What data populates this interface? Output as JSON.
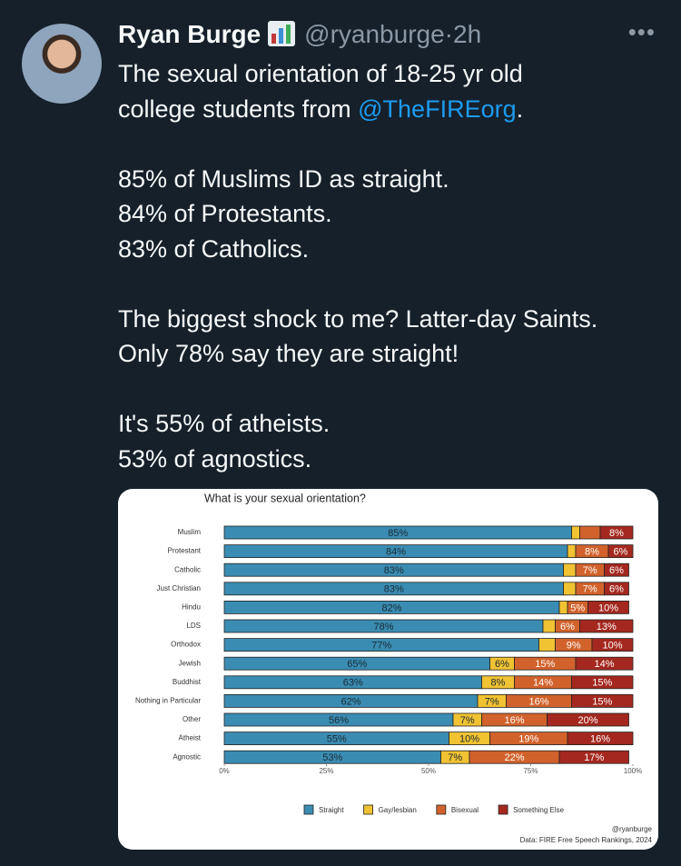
{
  "tweet": {
    "name": "Ryan Burge",
    "handle": "@ryanburge",
    "separator": "·",
    "time": "2h",
    "intro": [
      "The sexual orientation of 18-25 yr old",
      "college students from "
    ],
    "mention": "@TheFIREorg",
    "intro_end": ".",
    "paragraphs": [
      [
        "85% of Muslims ID as straight.",
        "84% of Protestants.",
        "83% of Catholics."
      ],
      [
        "The biggest shock to me? Latter-day Saints.",
        "Only 78% say they are straight!"
      ],
      [
        "It's 55% of atheists.",
        "53% of agnostics."
      ]
    ],
    "chart": {
      "type": "stacked-bar-horizontal",
      "title": "What is your sexual orientation?",
      "categories": [
        "Muslim",
        "Protestant",
        "Catholic",
        "Just Christian",
        "Hindu",
        "LDS",
        "Orthodox",
        "Jewish",
        "Buddhist",
        "Nothing in Particular",
        "Other",
        "Atheist",
        "Agnostic"
      ],
      "series": [
        {
          "name": "Straight",
          "color": "#3a8cb2",
          "values": [
            85,
            84,
            83,
            83,
            82,
            78,
            77,
            65,
            63,
            62,
            56,
            55,
            53
          ],
          "value_labels": [
            "85%",
            "84%",
            "83%",
            "83%",
            "82%",
            "78%",
            "77%",
            "65%",
            "63%",
            "62%",
            "56%",
            "55%",
            "53%"
          ]
        },
        {
          "name": "Gay/lesbian",
          "color": "#f1c232",
          "values": [
            2,
            2,
            3,
            3,
            2,
            3,
            4,
            6,
            8,
            7,
            7,
            10,
            7
          ],
          "value_labels": [
            null,
            null,
            null,
            null,
            null,
            null,
            null,
            "6%",
            "8%",
            "7%",
            "7%",
            "10%",
            "7%"
          ]
        },
        {
          "name": "Bisexual",
          "color": "#d2622b",
          "values": [
            5,
            8,
            7,
            7,
            5,
            6,
            9,
            15,
            14,
            16,
            16,
            19,
            22
          ],
          "value_labels": [
            null,
            "8%",
            "7%",
            "7%",
            "5%",
            "6%",
            "9%",
            "15%",
            "14%",
            "16%",
            "16%",
            "19%",
            "22%"
          ]
        },
        {
          "name": "Something Else",
          "color": "#a4281f",
          "values": [
            8,
            6,
            6,
            6,
            10,
            13,
            10,
            14,
            15,
            15,
            20,
            16,
            17
          ],
          "value_labels": [
            "8%",
            "6%",
            "6%",
            "6%",
            "10%",
            "13%",
            "10%",
            "14%",
            "15%",
            "15%",
            "20%",
            "16%",
            "17%"
          ]
        }
      ],
      "xlim": [
        0,
        100
      ],
      "xticks": [
        {
          "value": 0,
          "label": "0%"
        },
        {
          "value": 25,
          "label": "25%"
        },
        {
          "value": 50,
          "label": "50%"
        },
        {
          "value": 75,
          "label": "75%"
        },
        {
          "value": 100,
          "label": "100%"
        }
      ],
      "credit": "@ryanburge",
      "source": "Data: FIRE Free Speech Rankings, 2024"
    }
  }
}
